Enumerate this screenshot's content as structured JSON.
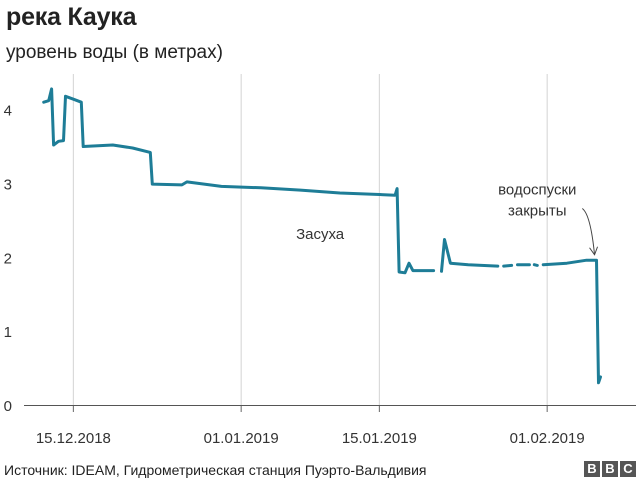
{
  "chart_data": {
    "type": "line",
    "title": "река Каука",
    "subtitle": "уровень воды (в метрах)",
    "ylim": [
      0,
      4.4
    ],
    "yticks": [
      0,
      1,
      2,
      3,
      4
    ],
    "xlim": [
      "2018-12-10",
      "2019-02-10"
    ],
    "xticks": [
      {
        "date": "2018-12-15",
        "label": "15.12.2018"
      },
      {
        "date": "2019-01-01",
        "label": "01.01.2019"
      },
      {
        "date": "2019-01-15",
        "label": "15.01.2019"
      },
      {
        "date": "2019-02-01",
        "label": "01.02.2019"
      }
    ],
    "grid": "vertical lines at x ticks",
    "series": [
      {
        "color": "#1e7d97",
        "segments": [
          [
            [
              "2018-12-12",
              4.1
            ],
            [
              "2018-12-12.5",
              4.12
            ],
            [
              "2018-12-12.8",
              4.28
            ],
            [
              "2018-12-13",
              3.52
            ],
            [
              "2018-12-13.5",
              3.57
            ],
            [
              "2018-12-14",
              3.58
            ],
            [
              "2018-12-14.2",
              4.18
            ],
            [
              "2018-12-15",
              4.14
            ],
            [
              "2018-12-15.8",
              4.1
            ],
            [
              "2018-12-16",
              3.5
            ],
            [
              "2018-12-19",
              3.52
            ],
            [
              "2018-12-21",
              3.48
            ],
            [
              "2018-12-22.8",
              3.42
            ],
            [
              "2018-12-23",
              2.99
            ],
            [
              "2018-12-26",
              2.98
            ],
            [
              "2018-12-26.5",
              3.02
            ],
            [
              "2018-12-30",
              2.96
            ],
            [
              "2019-01-03",
              2.94
            ],
            [
              "2019-01-07",
              2.91
            ],
            [
              "2019-01-11",
              2.87
            ],
            [
              "2019-01-15",
              2.85
            ],
            [
              "2019-01-16.6",
              2.84
            ],
            [
              "2019-01-16.8",
              2.93
            ],
            [
              "2019-01-17",
              1.8
            ],
            [
              "2019-01-17.6",
              1.79
            ],
            [
              "2019-01-18",
              1.92
            ],
            [
              "2019-01-18.4",
              1.82
            ],
            [
              "2019-01-20.5",
              1.82
            ]
          ],
          [
            [
              "2019-01-21.3",
              1.81
            ],
            [
              "2019-01-21.6",
              2.24
            ],
            [
              "2019-01-22.2",
              1.92
            ],
            [
              "2019-01-24",
              1.9
            ],
            [
              "2019-01-27",
              1.88
            ]
          ],
          [
            [
              "2019-01-27.6",
              1.88
            ],
            [
              "2019-01-28.4",
              1.89
            ]
          ],
          [
            [
              "2019-01-29",
              1.9
            ],
            [
              "2019-01-30.2",
              1.9
            ]
          ],
          [
            [
              "2019-01-30.7",
              1.9
            ],
            [
              "2019-01-31",
              1.89
            ]
          ],
          [
            [
              "2019-01-31.6",
              1.9
            ],
            [
              "2019-02-03",
              1.92
            ],
            [
              "2019-02-05",
              1.96
            ],
            [
              "2019-02-06",
              1.96
            ],
            [
              "2019-02-06.2",
              0.3
            ],
            [
              "2019-02-06.4",
              0.38
            ]
          ]
        ]
      }
    ],
    "annotations": [
      {
        "text_lines": [
          "Засуха"
        ],
        "date": "2019-01-09",
        "y": 2.25
      },
      {
        "text_lines": [
          "водоспуски",
          "закрыты"
        ],
        "date": "2019-01-31",
        "y": 2.85,
        "arrow_to": {
          "date": "2019-02-05.8",
          "y": 1.98
        }
      }
    ]
  },
  "footer": {
    "source": "Источник:  IDEAM, Гидрометрическая станция Пуэрто-Вальдивия",
    "logo": [
      "B",
      "B",
      "C"
    ]
  }
}
